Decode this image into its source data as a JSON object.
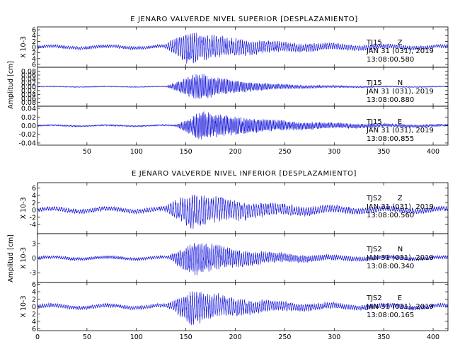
{
  "colors": {
    "trace": "#1f1fdc",
    "axes": "#000000",
    "background": "#ffffff"
  },
  "chart_data": [
    {
      "type": "line",
      "title": "E JENARO VALVERDE NIVEL SUPERIOR [DESPLAZAMIENTO]",
      "ylabel": "Amplitud [cm]",
      "xlim": [
        0,
        415
      ],
      "xticks": [
        50,
        100,
        150,
        200,
        250,
        300,
        350,
        400
      ],
      "panels": [
        {
          "name": "TJ15 Z",
          "station": "TJ15",
          "component": "Z",
          "date": "JAN 31 (031), 2019",
          "time": "13:08:00.580",
          "scale_label": "X 10-3",
          "ylim": [
            -7,
            7
          ],
          "yticks": [
            6,
            4,
            2,
            0,
            -2,
            -4,
            -6
          ],
          "ytick_labels": [
            "6",
            "4",
            "2",
            "0",
            "2",
            "4",
            "6"
          ],
          "envelope": {
            "noise": 0.5,
            "peak": 5.5,
            "onset": 128,
            "peak_time": 152,
            "decay": 70,
            "period": 2.2
          }
        },
        {
          "name": "TJ15 N",
          "station": "TJ15",
          "component": "N",
          "date": "JAN 31 (031), 2019",
          "time": "13:08:00.880",
          "ylim": [
            -0.1,
            0.1
          ],
          "yticks": [
            0.08,
            0.06,
            0.04,
            0.02,
            0.0,
            -0.02,
            -0.04,
            -0.06,
            -0.08
          ],
          "ytick_labels": [
            "0.08",
            "0.06",
            "0.04",
            "0.02",
            "0.00",
            "0.02",
            "0.04",
            "0.06",
            "0.08"
          ],
          "envelope": {
            "noise": 0.002,
            "peak": 0.075,
            "onset": 130,
            "peak_time": 163,
            "decay": 45,
            "period": 1.6
          }
        },
        {
          "name": "TJ15 E",
          "station": "TJ15",
          "component": "E",
          "date": "JAN 31 (031), 2019",
          "time": "13:08:00.855",
          "ylim": [
            -0.045,
            0.045
          ],
          "yticks": [
            0.04,
            0.02,
            0.0,
            -0.02,
            -0.04
          ],
          "ytick_labels": [
            "0.04",
            "0.02",
            "0.00",
            "-0.02",
            "-0.04"
          ],
          "envelope": {
            "noise": 0.0015,
            "peak": 0.035,
            "onset": 140,
            "peak_time": 165,
            "decay": 70,
            "period": 1.5
          }
        }
      ]
    },
    {
      "type": "line",
      "title": "E JENARO VALVERDE NIVEL INFERIOR [DESPLAZAMIENTO]",
      "ylabel": "Amplitud [cm]",
      "xlim": [
        0,
        415
      ],
      "xticks": [
        0,
        50,
        100,
        150,
        200,
        250,
        300,
        350,
        400
      ],
      "panels": [
        {
          "name": "TJS2 Z",
          "station": "TJS2",
          "component": "Z",
          "date": "JAN 31 (031), 2019",
          "time": "13:08:00.560",
          "scale_label": "X 10-3",
          "ylim": [
            -6.5,
            7.5
          ],
          "yticks": [
            6,
            4,
            2,
            0,
            -2,
            -4
          ],
          "ytick_labels": [
            "6",
            "4",
            "2",
            "0",
            "-2",
            "-4"
          ],
          "envelope": {
            "noise": 0.6,
            "peak": 4.8,
            "onset": 128,
            "peak_time": 155,
            "decay": 60,
            "period": 2.4
          }
        },
        {
          "name": "TJS2 N",
          "station": "TJS2",
          "component": "N",
          "date": "JAN 31 (031), 2019",
          "time": "13:08:00.340",
          "scale_label": "X 10-3",
          "ylim": [
            -5,
            5
          ],
          "yticks": [
            3,
            0,
            -3
          ],
          "ytick_labels": [
            "3",
            "0",
            "-3"
          ],
          "envelope": {
            "noise": 0.3,
            "peak": 3.6,
            "onset": 132,
            "peak_time": 158,
            "decay": 55,
            "period": 2.0
          }
        },
        {
          "name": "TJS2 E",
          "station": "TJS2",
          "component": "E",
          "date": "JAN 31 (031), 2019",
          "time": "13:08:00.165",
          "scale_label": "X 10-3",
          "ylim": [
            -6.5,
            6.5
          ],
          "yticks": [
            6,
            4,
            2,
            0,
            -2,
            -4,
            -6
          ],
          "ytick_labels": [
            "6",
            "4",
            "2",
            "0",
            "2",
            "4",
            "6"
          ],
          "envelope": {
            "noise": 0.5,
            "peak": 4.5,
            "onset": 130,
            "peak_time": 157,
            "decay": 55,
            "period": 2.2
          }
        }
      ]
    }
  ]
}
